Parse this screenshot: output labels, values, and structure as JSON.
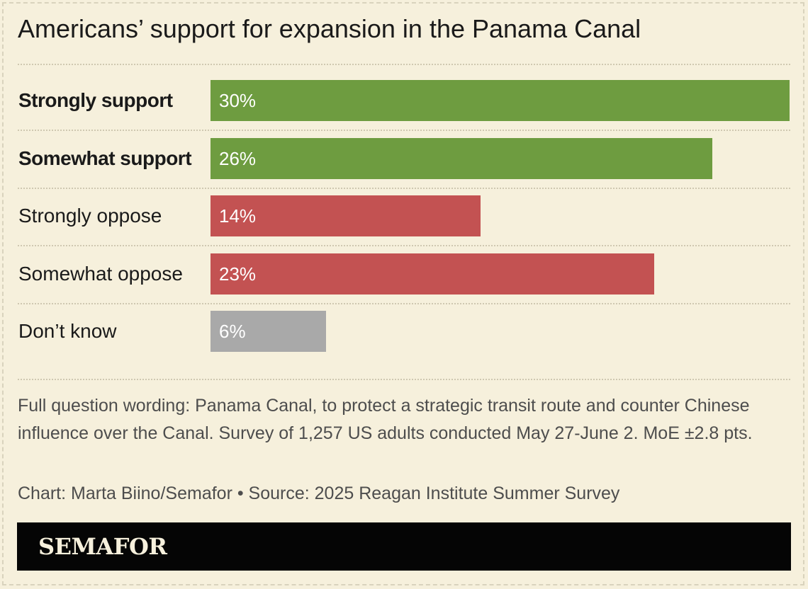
{
  "title": "Americans’ support for expansion in the Panama Canal",
  "chart_data": {
    "type": "bar",
    "orientation": "horizontal",
    "categories": [
      "Strongly support",
      "Somewhat support",
      "Strongly oppose",
      "Somewhat oppose",
      "Don’t know"
    ],
    "values": [
      30,
      26,
      14,
      23,
      6
    ],
    "value_labels": [
      "30%",
      "26%",
      "14%",
      "23%",
      "6%"
    ],
    "bar_colors": [
      "#6e9c40",
      "#6e9c40",
      "#c35252",
      "#c35252",
      "#a9a9a9"
    ],
    "bold_categories": [
      true,
      true,
      false,
      false,
      false
    ],
    "xlim": [
      0,
      30
    ]
  },
  "note": "Full question wording: Panama Canal, to protect a strategic transit route and counter Chinese influence over the Canal. Survey of 1,257 US adults conducted May 27-June 2. MoE ±2.8 pts.",
  "credit": "Chart: Marta Biino/Semafor • Source: 2025 Reagan Institute Summer Survey",
  "footer": {
    "logo": "SEMAFOR"
  }
}
